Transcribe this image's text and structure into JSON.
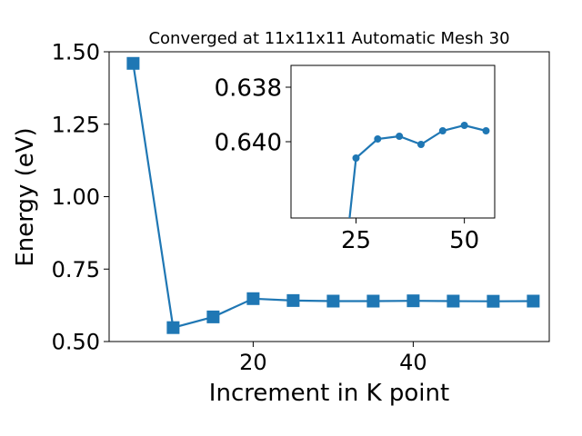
{
  "chart_data": [
    {
      "type": "line",
      "title": "Converged at 11x11x11 Automatic Mesh 30",
      "xlabel": "Increment in K point",
      "ylabel": "Energy (eV)",
      "xlim": [
        2,
        57
      ],
      "ylim": [
        0.5,
        1.5
      ],
      "xticks": [
        20,
        40
      ],
      "xtick_labels": [
        "20",
        "40"
      ],
      "yticks": [
        0.5,
        0.75,
        1.0,
        1.25,
        1.5
      ],
      "ytick_labels": [
        "0.50",
        "0.75",
        "1.00",
        "1.25",
        "1.50"
      ],
      "marker": "square",
      "color": "#1f77b4",
      "grid": false,
      "series": [
        {
          "x": [
            5,
            10,
            15,
            20,
            25,
            30,
            35,
            40,
            45,
            50,
            55
          ],
          "values": [
            1.46,
            0.548,
            0.585,
            0.648,
            0.6415,
            0.6395,
            0.6395,
            0.6405,
            0.6395,
            0.639,
            0.6395
          ]
        }
      ]
    },
    {
      "type": "line",
      "role": "inset",
      "xlim": [
        10,
        57
      ],
      "ylim": [
        0.6428,
        0.6372
      ],
      "xticks": [
        25,
        50
      ],
      "xtick_labels": [
        "25",
        "50"
      ],
      "yticks": [
        0.638,
        0.64
      ],
      "ytick_labels": [
        "0.638",
        "0.640"
      ],
      "marker": "circle",
      "color": "#1f77b4",
      "grid": false,
      "series": [
        {
          "x": [
            20,
            25,
            30,
            35,
            40,
            45,
            50,
            55
          ],
          "values": [
            0.648,
            0.6406,
            0.6399,
            0.6398,
            0.6401,
            0.6396,
            0.6394,
            0.6396
          ]
        }
      ]
    }
  ]
}
